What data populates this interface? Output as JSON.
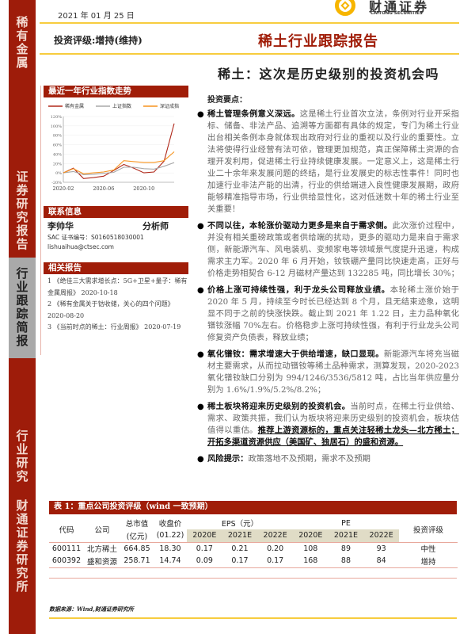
{
  "sidebar": {
    "top": "稀有金属",
    "mid": "证券研究报告",
    "grey": "行业跟踪简报",
    "bottom1": "行业研究",
    "bottom2": "财通证券研究所"
  },
  "header": {
    "date": "2021 年 01 月 25 日",
    "logo_cn": "财通证券",
    "logo_en": "CAITONG SECURITIES",
    "rating": "投资评级:增持(维持)",
    "report_type": "稀土行业跟踪报告",
    "title": "稀土：这次是历史级别的投资机会吗"
  },
  "colors": {
    "brand_red": "#a01d08",
    "accent_yellow": "#f7cc3e",
    "series_rare": "#b0281a",
    "series_sh": "#a8a8a8",
    "series_sz": "#f7931e"
  },
  "chart_section": {
    "heading": "最近一年行业指数走势"
  },
  "chart_data": {
    "type": "line",
    "x": [
      "2020-02",
      "2020-03",
      "2020-04",
      "2020-05",
      "2020-06",
      "2020-07",
      "2020-08",
      "2020-09",
      "2020-10",
      "2020-11",
      "2020-12",
      "2021-01"
    ],
    "x_ticks": [
      "2020-02",
      "2020-06",
      "2020-10"
    ],
    "ylim": [
      -20,
      120
    ],
    "yunit": "%",
    "legend": "top",
    "series": [
      {
        "name": "稀有金属",
        "values": [
          0,
          10,
          -12,
          -10,
          -7,
          5,
          18,
          10,
          0,
          2,
          25,
          105
        ]
      },
      {
        "name": "上证指数",
        "values": [
          0,
          3,
          -4,
          -3,
          -1,
          1,
          12,
          12,
          9,
          8,
          14,
          22
        ]
      },
      {
        "name": "深证成指",
        "values": [
          0,
          9,
          -2,
          0,
          2,
          6,
          26,
          24,
          22,
          22,
          26,
          45
        ]
      }
    ]
  },
  "contact": {
    "heading": "联系信息",
    "name": "李帅华",
    "role": "分析师",
    "sac": "SAC 证书编号：S0160518030001",
    "email": "lishuaihua@ctsec.com"
  },
  "related": {
    "heading": "相关报告",
    "items": [
      {
        "text": "1 《绝佳三大需求增长点：5G+卫星+量子：稀有金属周报》 2020-10-18"
      },
      {
        "text": "2 《稀有金属关于钴收储，关心的四个问题》 2020-08-20"
      },
      {
        "text": "3 《当前时点的稀土：行业周报》 2020-07-19"
      }
    ]
  },
  "points": {
    "heading": "投资要点：",
    "bullets": [
      {
        "bold": "稀土管理条例意义深远。",
        "text": "这是稀土行业首次立法，条例对行业开采指标、储备、非法产品、追溯等方面都有具体的规定，专门为稀土行业出台相关条例本身就体现出政府对行业的重视以及行业的重要性。立法将使得行业经营有法可依，管理更加规范，真正保障稀土资源的合理开发利用，促进稀土行业持续健康发展。一定意义上，这是稀土行业二十余年来发展问题的终结，是行业发展史的标志性事件！同时也加速行业非法产能的出清，行业的供给端进入良性健康发展期，政府能够精准指导市场，行业供给显性化，这对低迷数十年的稀土行业至关重要！"
      },
      {
        "bold": "不同以往，本轮涨价驱动力更多是来自于需求侧。",
        "text": "此次涨价过程中，并没有相关重磅政策或者供给端的扰动，更多的驱动力是来自于需求侧，新能源汽车、风电装机、变频家电等领域景气度提升迅速，构成需求主力军。2020 年 6 月开始，钕铁硼产量同比快速走高，正好与价格走势相契合 6-12 月磁材产量达到 132285 吨，同比增长 30%；"
      },
      {
        "bold": "价格上涨可持续性强，利于龙头公司释放业绩。",
        "text": "本轮稀土涨价始于 2020 年 5 月，持续至今时长已经达到 8 个月，且无结束迹象，这明显不同于之前的快涨快跌。截止到 2021 年 1.22 日，主力品种氧化镨钕涨幅 70%左右。价格稳步上涨可持续性强，有利于行业龙头公司修复资产负债表，释放业绩；"
      },
      {
        "bold": "氧化镨钕：需求增速大于供给增速，缺口显现。",
        "text": "新能源汽车将充当磁材主要需求，从而拉动镨钕等稀土品种需求，测算发现，2020-2023 氧化镨钕缺口分别为 994/1246/3536/5812 吨，占比当年供应量分别为 1.6%/1.9%/5.2%/8.2%；"
      },
      {
        "bold": "稀土板块将迎来历史级别的投资机会。",
        "text": "当前时点，在稀土行业供给、需求、政策共振，我们认为板块将迎来历史级别的投资机会，板块估值得以重估。",
        "underline": "推荐上游资源标的，重点关注轻稀土龙头—北方稀土；开拓多渠道资源供应（美国矿、独居石）的盛和资源。"
      },
      {
        "bold": "风险提示：",
        "text": "政策落地不及预期，需求不及预期"
      }
    ]
  },
  "table": {
    "title": "表 1：重点公司投资评级（wind 一致预期）",
    "headers": {
      "code": "代码",
      "company": "公司",
      "mcap": "总市值",
      "mcap_unit": "(亿元)",
      "price": "收盘价",
      "price_date": "(01.22)",
      "eps": "EPS（元）",
      "pe": "PE",
      "rating": "投资评级",
      "years": [
        "2020E",
        "2021E",
        "2022E"
      ]
    },
    "rows": [
      {
        "code": "600111",
        "company": "北方稀土",
        "mcap": "664.85",
        "price": "18.30",
        "eps": [
          "0.17",
          "0.21",
          "0.20"
        ],
        "pe": [
          "108",
          "89",
          "93"
        ],
        "rating": "中性"
      },
      {
        "code": "600392",
        "company": "盛和资源",
        "mcap": "258.71",
        "price": "14.74",
        "eps": [
          "0.09",
          "0.17",
          "0.17"
        ],
        "pe": [
          "168",
          "88",
          "84"
        ],
        "rating": "增持"
      }
    ],
    "source": "数据来源：Wind,财通证券研究所"
  }
}
